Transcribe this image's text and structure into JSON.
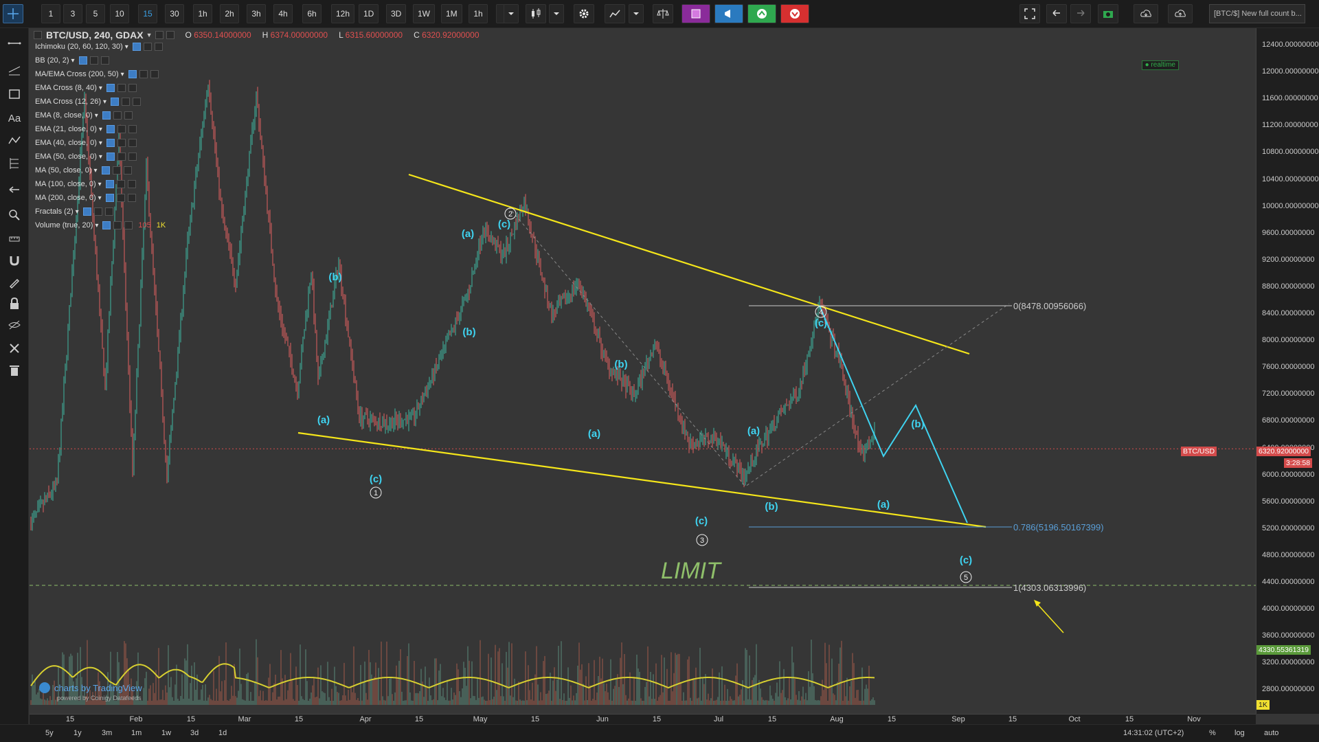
{
  "toolbar": {
    "timeframes": [
      "1",
      "3",
      "5",
      "10",
      "15",
      "30",
      "1h",
      "2h",
      "3h",
      "4h",
      "6h",
      "12h",
      "1D",
      "3D",
      "1W",
      "1M",
      "1h"
    ],
    "active_timeframe": "15",
    "icons": [
      "more-icon",
      "dropdown-icon",
      "candles-icon",
      "dropdown-icon",
      "gear-icon",
      "indicators-icon",
      "dropdown-icon",
      "compare-icon",
      "alerts-cube-icon",
      "megaphone-icon",
      "up-arrow-icon",
      "down-arrow-icon",
      "fullscreen-icon",
      "undo-icon",
      "redo-icon",
      "camera-icon",
      "cloud-down-icon",
      "cloud-up-icon"
    ],
    "news_text": "[BTC/$] New full count b..."
  },
  "legend": {
    "symbol": "BTC/USD, 240, GDAX",
    "ohlc": {
      "o_label": "O",
      "o": "6350.14000000",
      "h_label": "H",
      "h": "6374.00000000",
      "l_label": "L",
      "l": "6315.60000000",
      "c_label": "C",
      "c": "6320.92000000"
    },
    "indicators": [
      "Ichimoku (20, 60, 120, 30)",
      "BB (20, 2)",
      "MA/EMA Cross (200, 50)",
      "EMA Cross (8, 40)",
      "EMA Cross (12, 26)",
      "EMA (8, close, 0)",
      "EMA (21, close, 0)",
      "EMA (40, close, 0)",
      "EMA (50, close, 0)",
      "MA (50, close, 0)",
      "MA (100, close, 0)",
      "MA (200, close, 0)",
      "Fractals (2)",
      "Volume (true, 20)"
    ],
    "volume_values": [
      "105",
      "1K"
    ],
    "realtime": "realtime"
  },
  "price_axis": {
    "labels": [
      "12400.00000000",
      "12000.00000000",
      "11600.00000000",
      "11200.00000000",
      "10800.00000000",
      "10400.00000000",
      "10000.00000000",
      "9600.00000000",
      "9200.00000000",
      "8800.00000000",
      "8400.00000000",
      "8000.00000000",
      "7600.00000000",
      "7200.00000000",
      "6800.00000000",
      "6400.00000000",
      "6000.00000000",
      "5600.00000000",
      "5200.00000000",
      "4800.00000000",
      "4400.00000000",
      "4000.00000000",
      "3600.00000000",
      "3200.00000000",
      "2800.00000000"
    ],
    "symbol_tag": "BTC/USD",
    "price_tag": "6320.92000000",
    "countdown_tag": "3:28:58",
    "green_tag": "4330.55361319",
    "volume_tag": "1K"
  },
  "time_axis": {
    "labels": [
      "15",
      "Feb",
      "15",
      "Mar",
      "15",
      "Apr",
      "15",
      "May",
      "15",
      "Jun",
      "15",
      "Jul",
      "15",
      "Aug",
      "15",
      "Sep",
      "15",
      "Oct",
      "15",
      "Nov"
    ]
  },
  "annotations": {
    "limit": "LIMIT",
    "fib_0": "0(8478.00956066)",
    "fib_786": "0.786(5196.50167399)",
    "fib_1": "1(4303.06313996)",
    "watermark": "charts by TradingView",
    "powered": "powered by Coinigy Datafeeds",
    "waves": [
      "(b)",
      "(a)",
      "(c)",
      "(a)",
      "(b)",
      "(c)",
      "(b)",
      "(a)",
      "(c)",
      "(a)",
      "(b)",
      "(c)",
      "(b)",
      "(a)",
      "(c)"
    ],
    "circles": [
      "1",
      "2",
      "3",
      "4",
      "5"
    ]
  },
  "bottom_bar": {
    "ranges": [
      "5y",
      "1y",
      "3m",
      "1m",
      "1w",
      "3d",
      "1d"
    ],
    "time": "14:31:02 (UTC+2)",
    "percent": "%",
    "log": "log",
    "auto": "auto"
  },
  "colors": {
    "wedge": "#f5e61a",
    "wave_labels": "#3fd3f0",
    "candle_up": "#3fb8a2",
    "candle_down": "#e36060",
    "price_line": "#d44b4b"
  }
}
